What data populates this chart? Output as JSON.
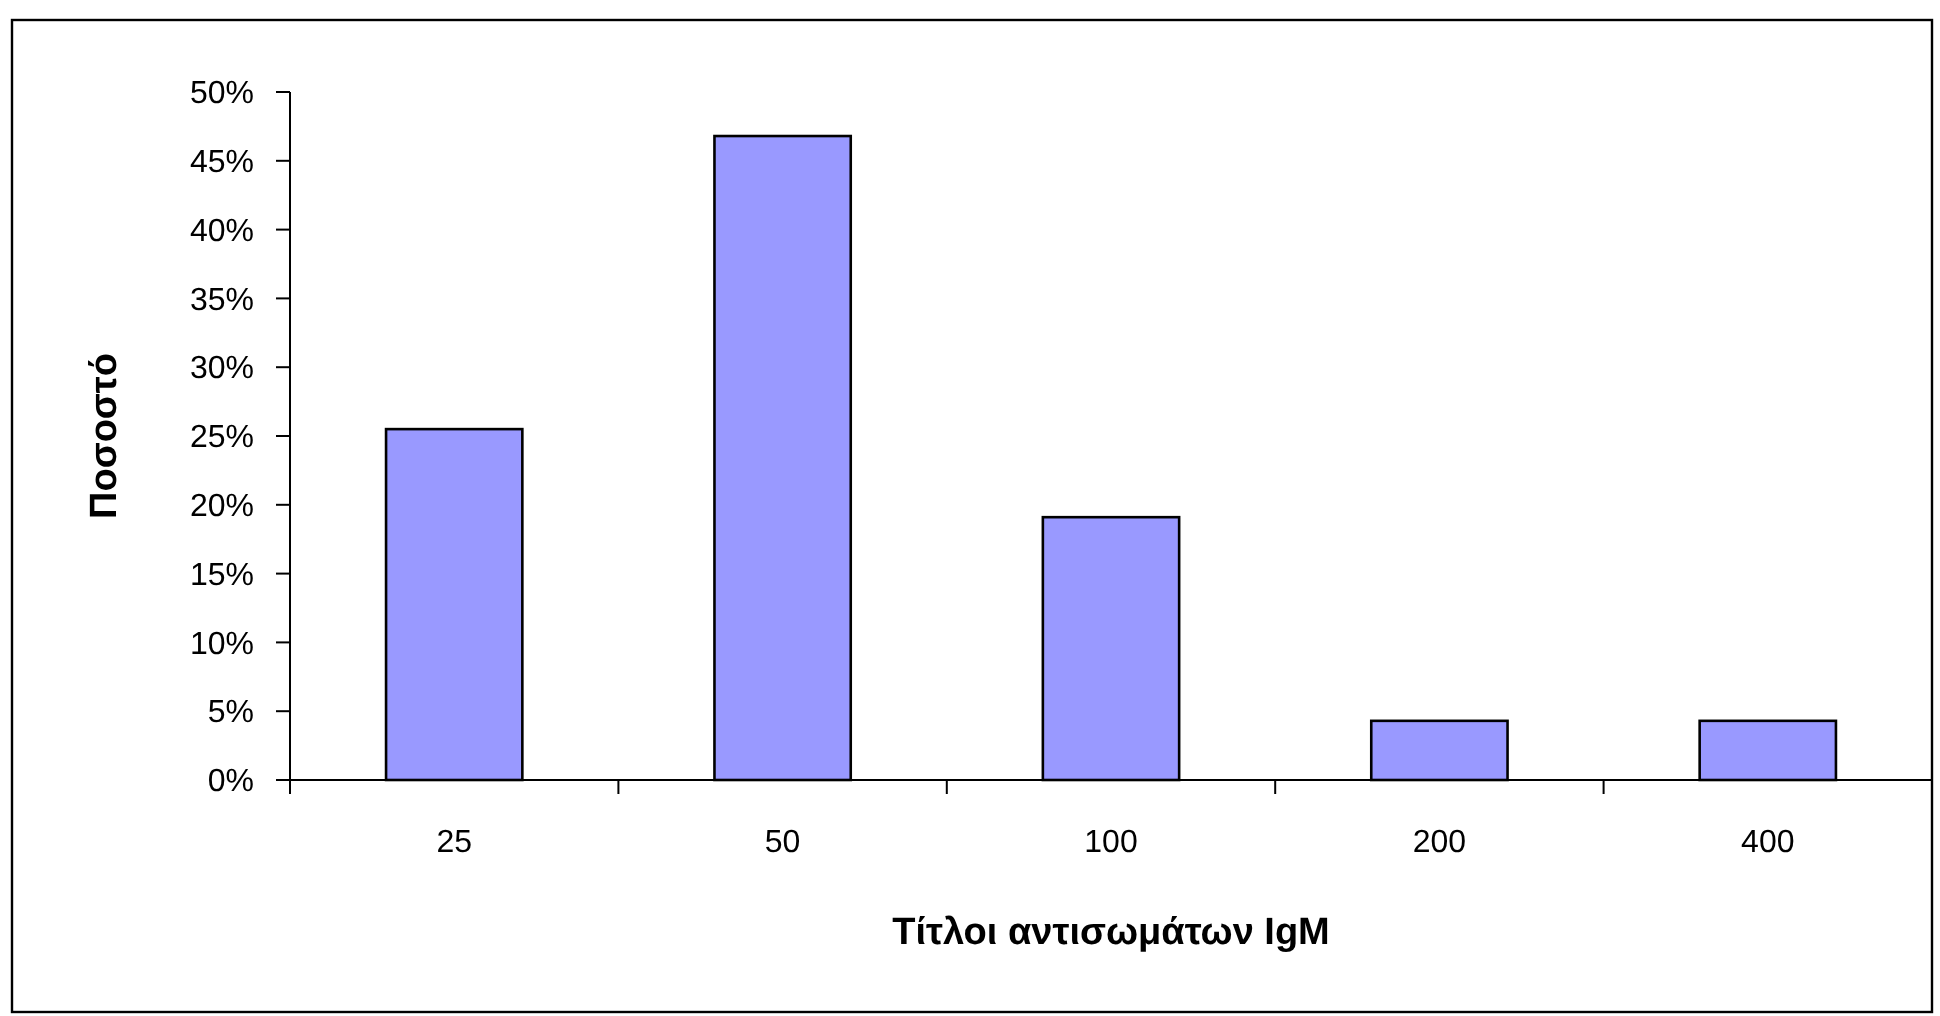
{
  "chart_data": {
    "type": "bar",
    "xlabel": "Τίτλοι αντισωμάτων IgM",
    "ylabel": "Ποσοστό",
    "categories": [
      "25",
      "50",
      "100",
      "200",
      "400"
    ],
    "values": [
      25.5,
      46.8,
      19.1,
      4.3,
      4.3
    ],
    "color": "#9999ff",
    "ylim": [
      0,
      50
    ],
    "yticks": [
      {
        "value": 0,
        "label": "0%"
      },
      {
        "value": 5,
        "label": "5%"
      },
      {
        "value": 10,
        "label": "10%"
      },
      {
        "value": 15,
        "label": "15%"
      },
      {
        "value": 20,
        "label": "20%"
      },
      {
        "value": 25,
        "label": "25%"
      },
      {
        "value": 30,
        "label": "30%"
      },
      {
        "value": 35,
        "label": "35%"
      },
      {
        "value": 40,
        "label": "40%"
      },
      {
        "value": 45,
        "label": "45%"
      },
      {
        "value": 50,
        "label": "50%"
      }
    ]
  }
}
